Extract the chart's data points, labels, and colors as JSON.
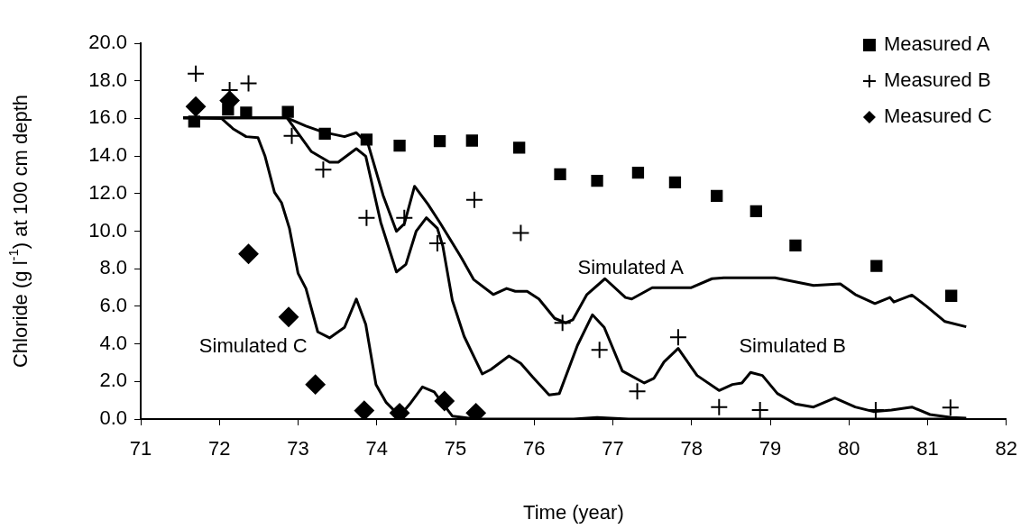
{
  "chart_data": {
    "type": "scatter",
    "xlabel": "Time (year)",
    "ylabel": "Chloride (g l$^{-1}$) at 100 cm depth",
    "xlim": [
      71,
      82
    ],
    "xticks": [
      71,
      72,
      73,
      74,
      75,
      76,
      77,
      78,
      79,
      80,
      81,
      82
    ],
    "ylim": [
      0,
      20
    ],
    "yticks": [
      {
        "value": 0,
        "label": "0.0"
      },
      {
        "value": 2,
        "label": "2.0"
      },
      {
        "value": 4,
        "label": "4.0"
      },
      {
        "value": 6,
        "label": "6.0"
      },
      {
        "value": 8,
        "label": "8.0"
      },
      {
        "value": 10,
        "label": "10.0"
      },
      {
        "value": 12,
        "label": "12.0"
      },
      {
        "value": 14,
        "label": "14.0"
      },
      {
        "value": 16,
        "label": "16.0"
      },
      {
        "value": 18,
        "label": "18.0"
      },
      {
        "value": 20,
        "label": "20.0"
      }
    ],
    "grid": false,
    "legend": "top right",
    "series": [
      {
        "name": "Measured A",
        "marker": "square",
        "color": "#000000",
        "x": [
          71.68,
          72.11,
          72.34,
          72.87,
          73.34,
          73.87,
          74.29,
          74.8,
          75.21,
          75.81,
          76.33,
          76.8,
          77.32,
          77.79,
          78.32,
          78.82,
          79.32,
          80.35,
          81.3
        ],
        "values": [
          15.83,
          16.47,
          16.31,
          16.35,
          15.19,
          14.87,
          14.55,
          14.79,
          14.82,
          14.44,
          13.03,
          12.68,
          13.11,
          12.6,
          11.88,
          11.06,
          9.24,
          8.15,
          6.56
        ]
      },
      {
        "name": "Measured B",
        "marker": "cross",
        "color": "#000000",
        "x": [
          71.7,
          72.13,
          72.37,
          72.92,
          73.32,
          73.87,
          74.35,
          74.77,
          75.24,
          75.83,
          76.36,
          76.83,
          77.31,
          77.83,
          78.35,
          78.87,
          80.34,
          81.29
        ],
        "values": [
          18.38,
          17.51,
          17.86,
          15.07,
          13.27,
          10.71,
          10.71,
          9.35,
          11.67,
          9.91,
          5.12,
          3.68,
          1.47,
          4.35,
          0.64,
          0.48,
          0.48,
          0.61
        ]
      },
      {
        "name": "Measured C",
        "marker": "diamond",
        "color": "#000000",
        "x": [
          71.7,
          72.13,
          72.37,
          72.88,
          73.22,
          73.84,
          74.29,
          74.86,
          75.26
        ],
        "values": [
          16.63,
          16.95,
          8.79,
          5.43,
          1.84,
          0.45,
          0.32,
          0.96,
          0.32
        ]
      },
      {
        "name": "Simulated A",
        "type": "line",
        "marker": "none",
        "color": "#000000",
        "x": [
          71.54,
          72.86,
          73.1,
          73.32,
          73.59,
          73.74,
          73.89,
          74.08,
          74.25,
          74.35,
          74.48,
          74.65,
          74.8,
          75.08,
          75.23,
          75.48,
          75.65,
          75.76,
          75.91,
          76.06,
          76.26,
          76.4,
          76.49,
          76.67,
          76.9,
          77.16,
          77.24,
          77.5,
          77.99,
          78.26,
          78.41,
          79.06,
          79.55,
          79.89,
          80.08,
          80.33,
          80.52,
          80.57,
          80.8,
          80.99,
          81.22,
          81.49
        ],
        "values": [
          16.03,
          16.03,
          15.59,
          15.27,
          15.03,
          15.24,
          14.63,
          11.91,
          9.99,
          10.39,
          12.39,
          11.43,
          10.47,
          8.55,
          7.43,
          6.63,
          6.95,
          6.8,
          6.8,
          6.39,
          5.36,
          5.12,
          5.28,
          6.63,
          7.47,
          6.47,
          6.39,
          6.99,
          6.99,
          7.47,
          7.52,
          7.52,
          7.11,
          7.19,
          6.63,
          6.15,
          6.47,
          6.23,
          6.6,
          5.99,
          5.19,
          4.91
        ]
      },
      {
        "name": "Simulated B",
        "type": "line",
        "marker": "none",
        "color": "#000000",
        "x": [
          71.54,
          72.86,
          73.17,
          73.4,
          73.51,
          73.74,
          73.86,
          74.05,
          74.25,
          74.37,
          74.5,
          74.63,
          74.77,
          74.84,
          74.96,
          75.11,
          75.34,
          75.45,
          75.68,
          75.83,
          75.98,
          76.19,
          76.32,
          76.55,
          76.74,
          76.89,
          77.12,
          77.4,
          77.52,
          77.65,
          77.83,
          78.07,
          78.35,
          78.52,
          78.64,
          78.75,
          78.9,
          79.09,
          79.32,
          79.55,
          79.82,
          80.08,
          80.31,
          80.54,
          80.8,
          81.03,
          81.3,
          81.49
        ],
        "values": [
          16.03,
          16.03,
          14.23,
          13.67,
          13.67,
          14.39,
          13.99,
          10.47,
          7.83,
          8.23,
          9.99,
          10.71,
          10.15,
          9.19,
          6.32,
          4.4,
          2.4,
          2.64,
          3.36,
          2.96,
          2.24,
          1.28,
          1.36,
          3.92,
          5.55,
          4.88,
          2.56,
          1.92,
          2.16,
          3.04,
          3.76,
          2.32,
          1.52,
          1.84,
          1.92,
          2.48,
          2.32,
          1.36,
          0.8,
          0.64,
          1.12,
          0.64,
          0.4,
          0.48,
          0.64,
          0.24,
          0.08,
          0.05
        ]
      },
      {
        "name": "Simulated C",
        "type": "line",
        "marker": "none",
        "color": "#000000",
        "x": [
          71.54,
          72.03,
          72.18,
          72.34,
          72.49,
          72.58,
          72.7,
          72.79,
          72.89,
          73.0,
          73.1,
          73.25,
          73.4,
          73.59,
          73.74,
          73.86,
          73.99,
          74.12,
          74.29,
          74.42,
          74.58,
          74.73,
          74.8,
          74.96,
          75.26,
          76.5,
          76.8,
          77.2,
          81.49
        ],
        "values": [
          16.03,
          15.99,
          15.43,
          15.03,
          14.98,
          13.99,
          12.07,
          11.51,
          10.15,
          7.75,
          6.95,
          4.64,
          4.32,
          4.88,
          6.39,
          5.04,
          1.84,
          0.88,
          0.16,
          0.8,
          1.71,
          1.44,
          1.04,
          0.16,
          0,
          0,
          0.08,
          0,
          0
        ]
      }
    ]
  }
}
